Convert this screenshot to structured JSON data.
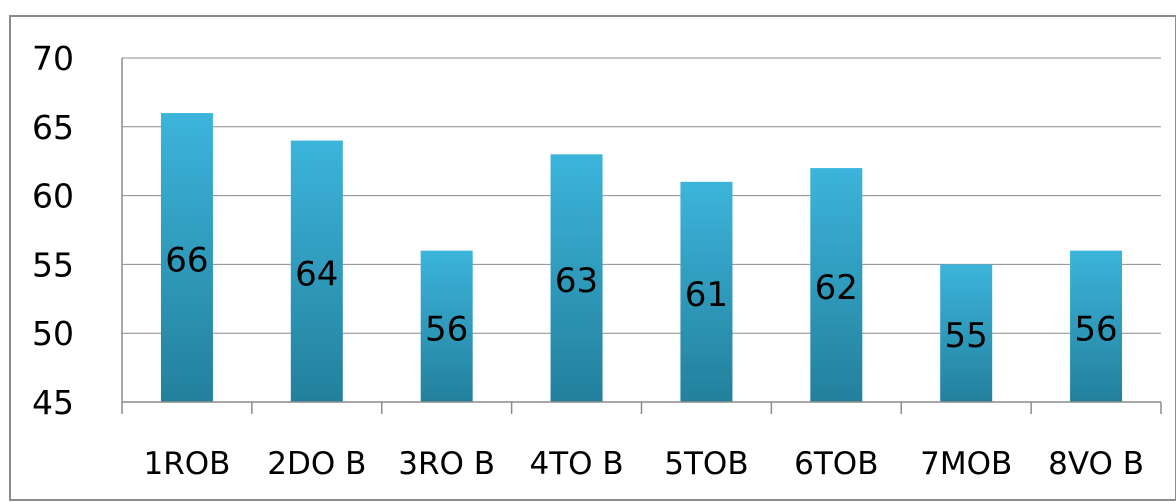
{
  "chart_data": {
    "type": "bar",
    "categories": [
      "1ROB",
      "2DO B",
      "3RO B",
      "4TO B",
      "5TOB",
      "6TOB",
      "7MOB",
      "8VO B"
    ],
    "values": [
      66,
      64,
      56,
      63,
      61,
      62,
      55,
      56
    ],
    "ylim": [
      45,
      70
    ],
    "yticks": [
      45,
      50,
      55,
      60,
      65,
      70
    ],
    "grid": true,
    "legend": "none",
    "colors": {
      "bar_top": "#3CB4DB",
      "bar_bottom": "#23809C",
      "grid": "#8C8C8C",
      "axis": "#8C8C8C",
      "border": "#8C8C8C"
    }
  }
}
